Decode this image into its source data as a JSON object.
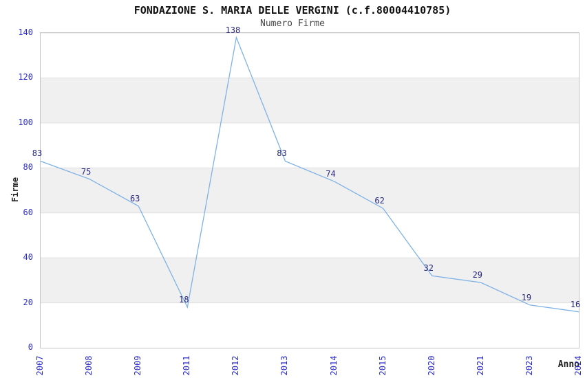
{
  "chart_data": {
    "type": "line",
    "title": "FONDAZIONE S. MARIA DELLE VERGINI (c.f.80004410785)",
    "subtitle": "Numero Firme",
    "xlabel": "Anno",
    "ylabel": "Firme",
    "categories": [
      "2007",
      "2008",
      "2009",
      "2011",
      "2012",
      "2013",
      "2014",
      "2015",
      "2020",
      "2021",
      "2023",
      "2024"
    ],
    "values": [
      83,
      75,
      63,
      18,
      138,
      83,
      74,
      62,
      32,
      29,
      19,
      16
    ],
    "yticks": [
      0,
      20,
      40,
      60,
      80,
      100,
      120,
      140
    ],
    "ylim": [
      0,
      140
    ],
    "bands": [
      [
        20,
        40
      ],
      [
        60,
        80
      ],
      [
        100,
        120
      ]
    ],
    "grid": "horizontal",
    "legend": "none",
    "data_labels_shown": true,
    "colors": {
      "line": "#7fb2e5",
      "tick_label": "#2a2ac8",
      "data_label": "#26267a",
      "band": "#f0f0f0",
      "gridline": "#e0e0e0",
      "plot_border": "#c4c4c4",
      "title": "#111111",
      "subtitle": "#444444",
      "axis_label": "#222222",
      "background": "#ffffff"
    }
  }
}
